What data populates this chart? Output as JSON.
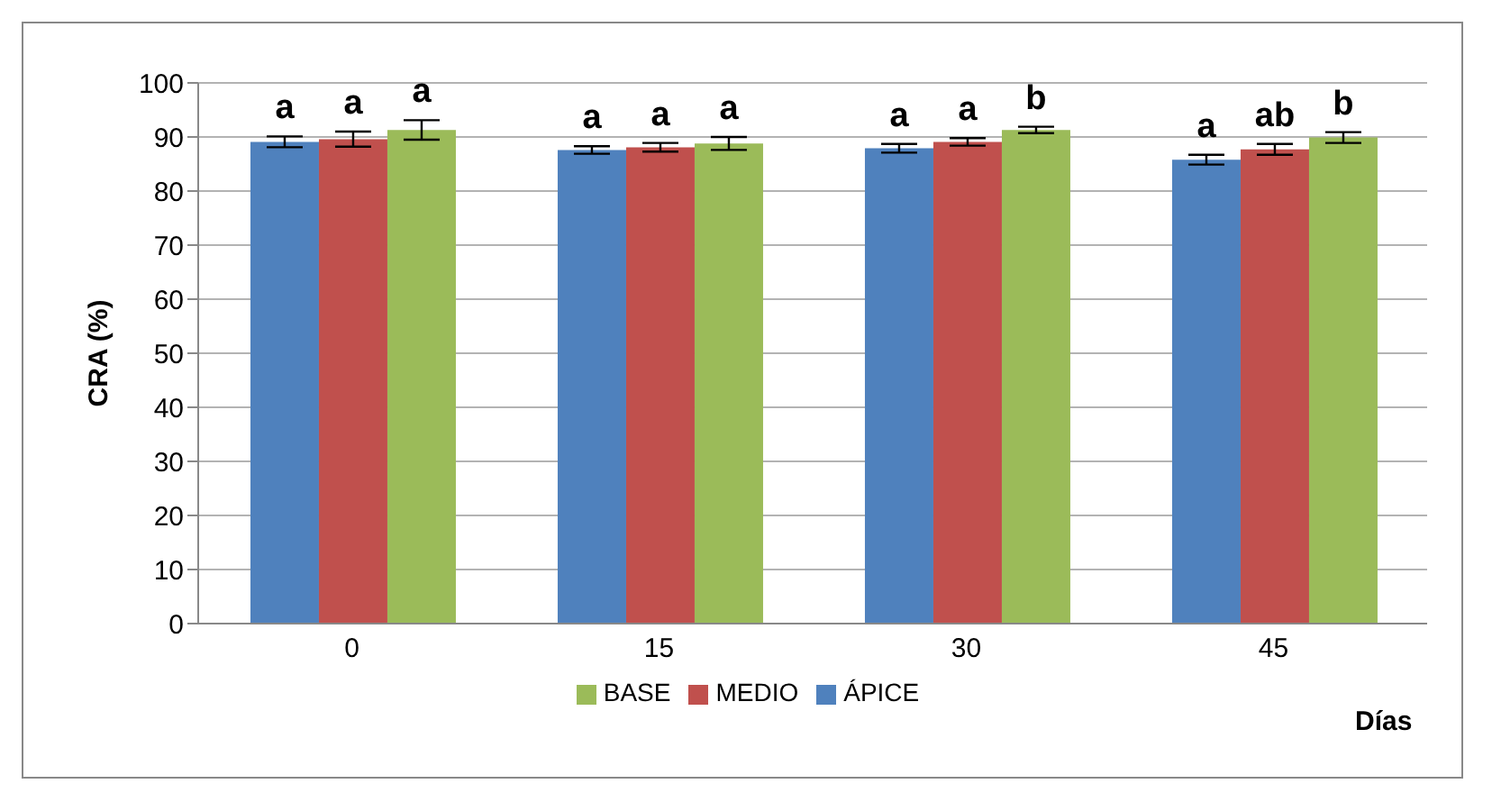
{
  "chart_data": {
    "type": "bar",
    "xlabel": "Días",
    "ylabel": "CRA (%)",
    "categories": [
      "0",
      "15",
      "30",
      "45"
    ],
    "series": [
      {
        "name": "ÁPICE",
        "color": "#4f81bd",
        "values": [
          89.1,
          87.6,
          87.9,
          85.8
        ],
        "errors": [
          1.0,
          0.7,
          0.8,
          0.9
        ],
        "value_labels": [
          "a",
          "a",
          "a",
          "a"
        ]
      },
      {
        "name": "MEDIO",
        "color": "#c0504d",
        "values": [
          89.6,
          88.1,
          89.1,
          87.7
        ],
        "errors": [
          1.4,
          0.8,
          0.7,
          1.0
        ],
        "value_labels": [
          "a",
          "a",
          "a",
          "ab"
        ]
      },
      {
        "name": "BASE",
        "color": "#9bbb59",
        "values": [
          91.3,
          88.8,
          91.3,
          89.9
        ],
        "errors": [
          1.8,
          1.2,
          0.6,
          1.0
        ],
        "value_labels": [
          "a",
          "a",
          "b",
          "b"
        ]
      }
    ],
    "ylim": [
      0,
      100
    ],
    "yticks": [
      0,
      10,
      20,
      30,
      40,
      50,
      60,
      70,
      80,
      90,
      100
    ],
    "grid": "y",
    "legend": "bottom"
  }
}
